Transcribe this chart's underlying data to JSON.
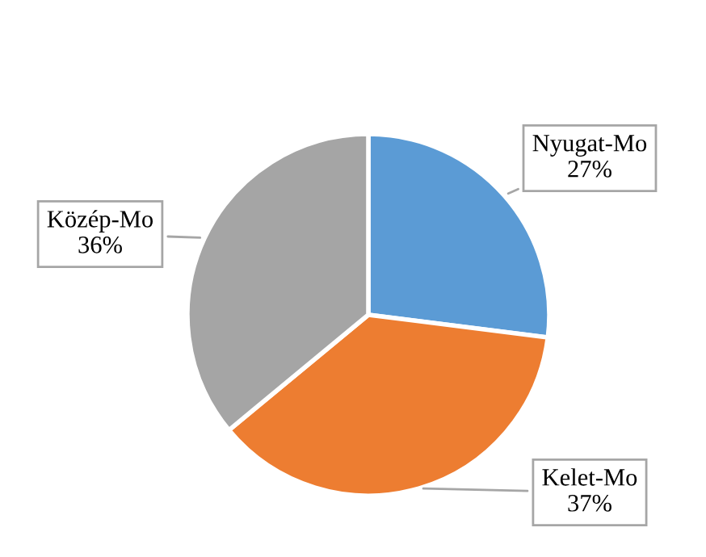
{
  "chart_data": {
    "type": "pie",
    "categories": [
      "Nyugat-Mo",
      "Kelet-Mo",
      "Közép-Mo"
    ],
    "values": [
      27,
      37,
      36
    ],
    "value_labels": [
      "27%",
      "37%",
      "36%"
    ],
    "colors": [
      "#5b9bd5",
      "#ed7d31",
      "#a5a5a5"
    ],
    "legend": false
  }
}
